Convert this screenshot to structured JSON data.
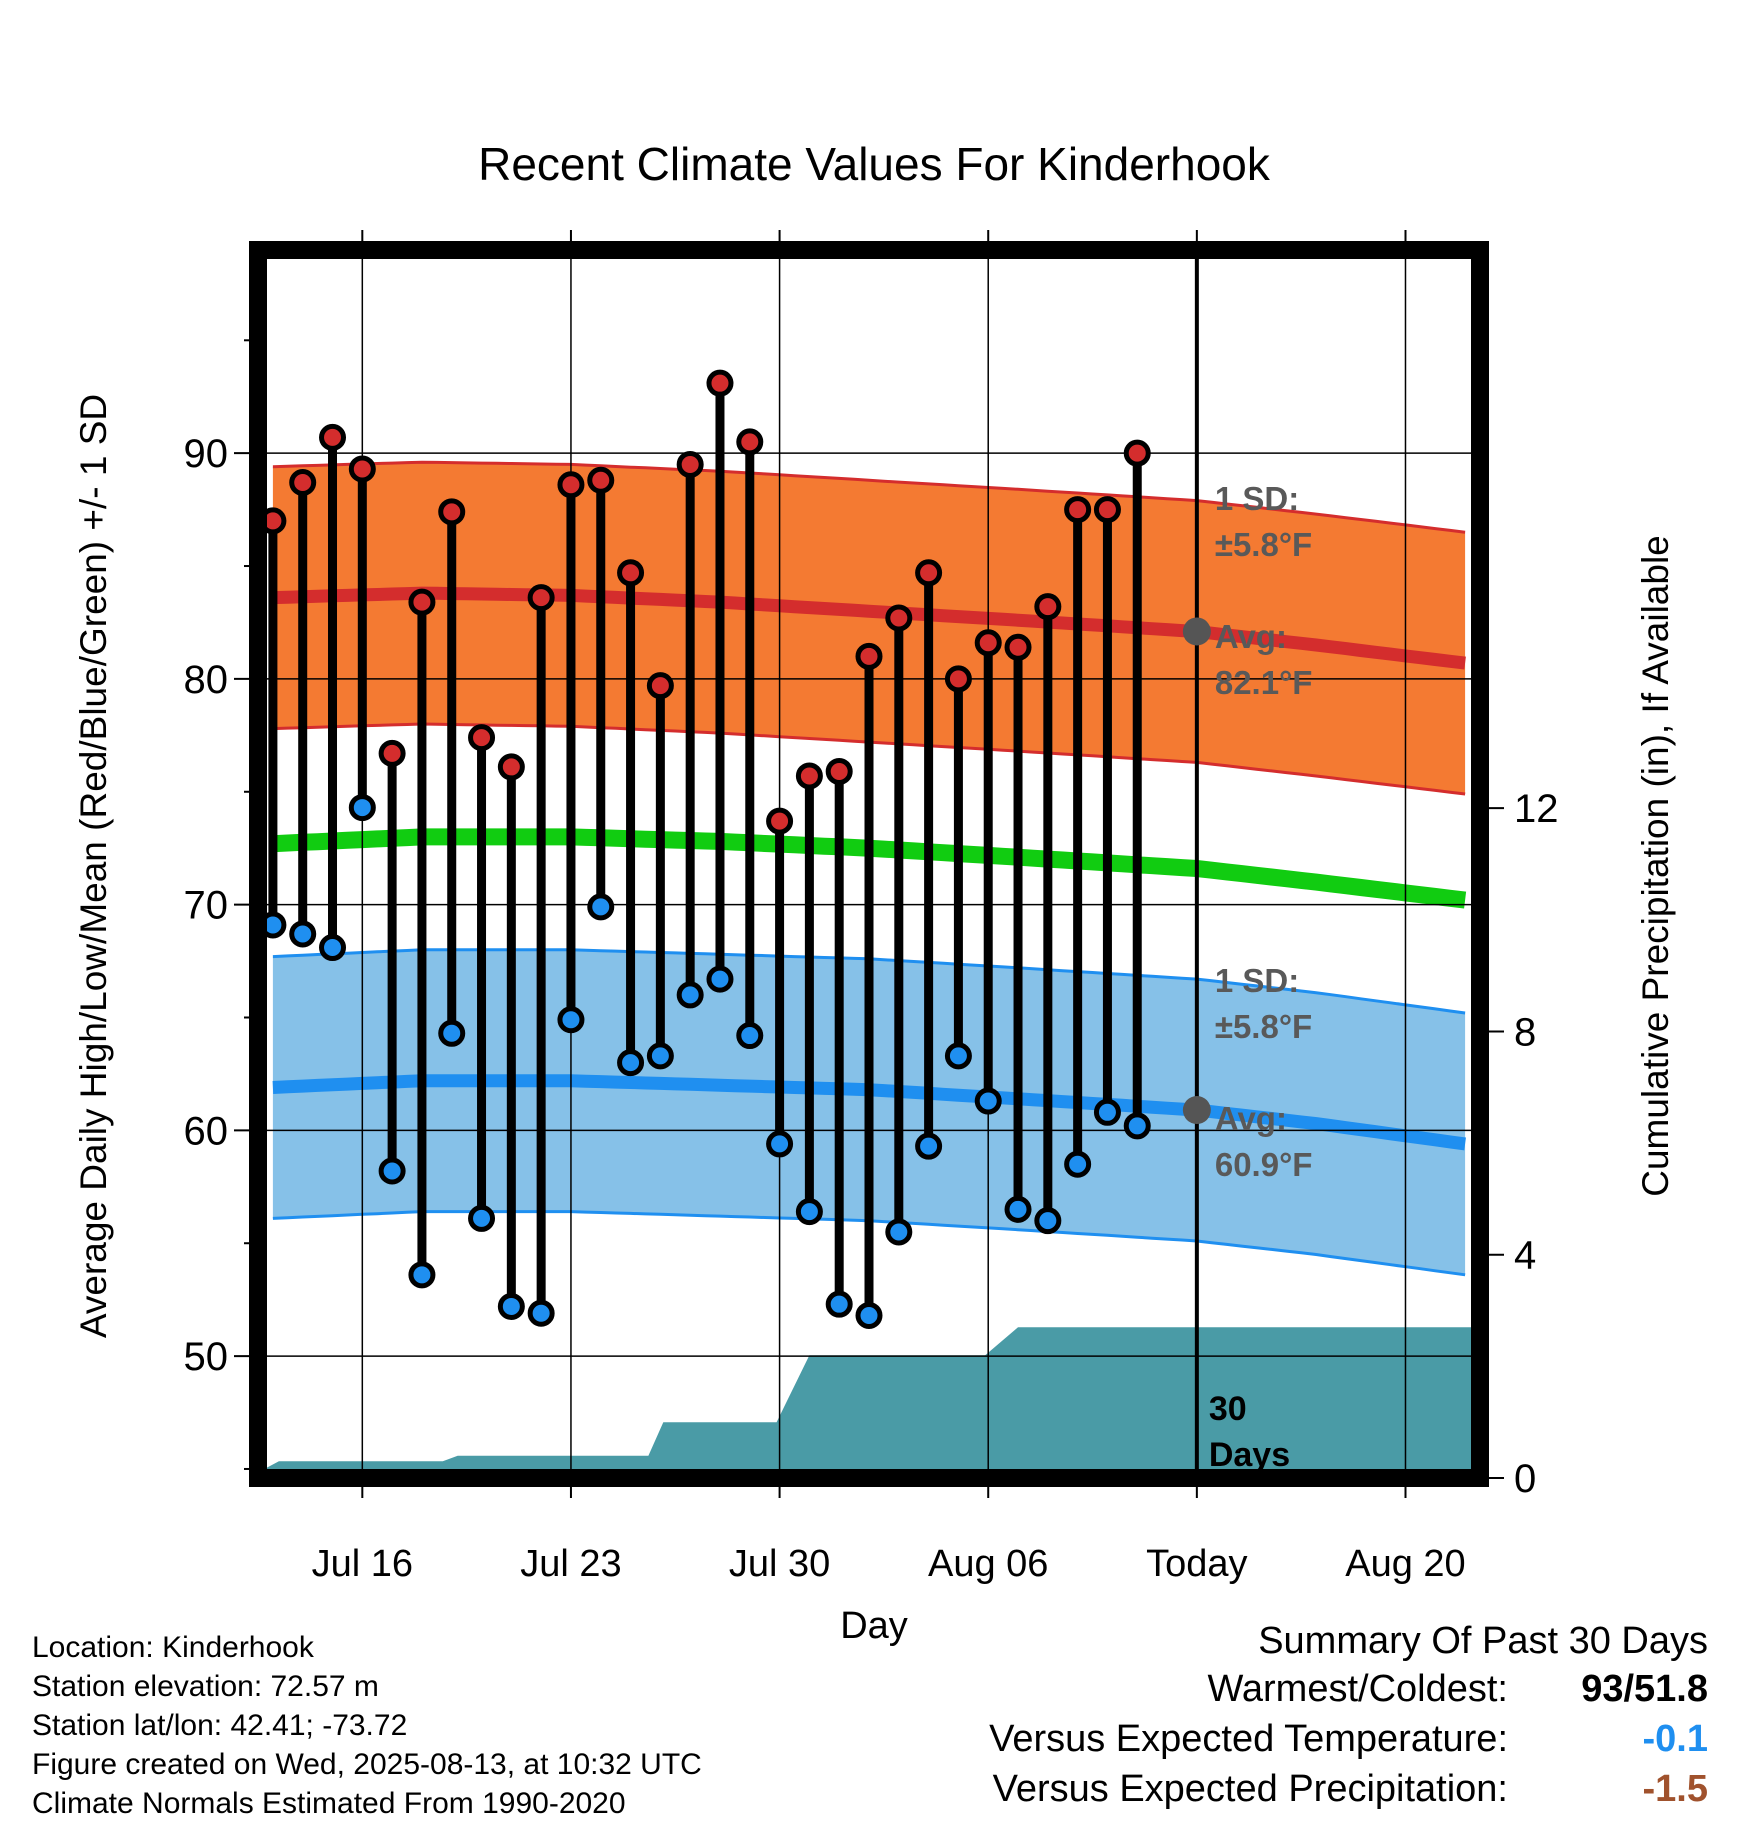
{
  "chart_data": {
    "type": "line",
    "title": "Recent Climate Values For Kinderhook",
    "xlabel": "Day",
    "ylabel_left": "Average Daily High/Low/Mean (Red/Blue/Green) +/- 1 SD",
    "ylabel_right": "Cumulative Precipitation (in), If Available",
    "x_ticks": [
      {
        "day": 3,
        "label": "Jul 16"
      },
      {
        "day": 10,
        "label": "Jul 23"
      },
      {
        "day": 17,
        "label": "Jul 30"
      },
      {
        "day": 24,
        "label": "Aug 06"
      },
      {
        "day": 31,
        "label": "Today"
      },
      {
        "day": 38,
        "label": "Aug 20"
      }
    ],
    "x_range": [
      -0.5,
      40.5
    ],
    "y_left_range": [
      44.6,
      99
    ],
    "y_left_ticks": [
      50,
      60,
      70,
      80,
      90
    ],
    "y_right_range": [
      0,
      22
    ],
    "y_right_ticks": [
      0,
      4,
      8,
      12
    ],
    "today_day": 31,
    "daily_high": [
      87,
      88.7,
      90.7,
      89.3,
      76.7,
      83.4,
      87.4,
      77.4,
      76.1,
      83.6,
      88.6,
      88.8,
      84.7,
      79.7,
      89.5,
      93.1,
      90.5,
      73.7,
      75.7,
      75.9,
      81,
      82.7,
      84.7,
      80,
      81.6,
      81.4,
      83.2,
      87.5,
      87.5,
      90
    ],
    "daily_low": [
      69.1,
      68.7,
      68.1,
      74.3,
      58.2,
      53.6,
      64.3,
      56.1,
      52.2,
      51.9,
      64.9,
      69.9,
      63,
      63.3,
      66,
      66.7,
      64.2,
      59.4,
      56.4,
      52.3,
      51.8,
      55.5,
      59.3,
      63.3,
      61.3,
      56.5,
      56,
      58.5,
      60.8,
      60.2
    ],
    "normal_high": {
      "days": [
        0,
        5,
        10,
        15,
        20,
        25,
        31,
        35,
        40
      ],
      "values": [
        83.6,
        83.8,
        83.7,
        83.4,
        83,
        82.6,
        82.1,
        81.5,
        80.7
      ]
    },
    "normal_high_sd": 5.8,
    "normal_mean": {
      "days": [
        0,
        5,
        10,
        15,
        20,
        25,
        31,
        35,
        40
      ],
      "values": [
        72.7,
        73,
        73,
        72.8,
        72.5,
        72.1,
        71.6,
        71,
        70.2
      ]
    },
    "normal_low": {
      "days": [
        0,
        5,
        10,
        15,
        20,
        25,
        31,
        35,
        40
      ],
      "values": [
        61.9,
        62.2,
        62.2,
        62,
        61.8,
        61.4,
        60.9,
        60.3,
        59.4
      ]
    },
    "normal_low_sd": 5.8,
    "cumulative_precip": {
      "days": [
        -0.5,
        0.2,
        5.7,
        6.2,
        12.6,
        13.1,
        16.9,
        18,
        23.9,
        25,
        40.5
      ],
      "values": [
        0.1,
        0.3,
        0.3,
        0.4,
        0.4,
        1,
        1,
        2.2,
        2.2,
        2.7,
        2.7
      ]
    },
    "annotations": {
      "high_sd_label": [
        "1 SD:",
        "±5.8°F"
      ],
      "high_avg_label": [
        "Avg:",
        "82.1°F"
      ],
      "low_sd_label": [
        "1 SD:",
        "±5.8°F"
      ],
      "low_avg_label": [
        "Avg:",
        "60.9°F"
      ],
      "days_label": [
        "30",
        "Days"
      ]
    },
    "colors": {
      "high_band": "#f47a32",
      "high_line": "#d42d2d",
      "low_band": "#86c1e8",
      "low_line": "#1f8ff0",
      "mean_line": "#11cc11",
      "precip": "#4a9ba6",
      "high_dot": "#d42d2d",
      "low_dot": "#1f8ff0",
      "annotation": "#595959"
    }
  },
  "footer": {
    "location": "Location: Kinderhook",
    "elevation": "Station elevation: 72.57 m",
    "latlon": "Station lat/lon: 42.41; -73.72",
    "created": "Figure created on Wed, 2025-08-13, at 10:32 UTC",
    "normals": "Climate Normals Estimated From 1990-2020"
  },
  "summary": {
    "heading": "Summary Of Past 30 Days",
    "warmest_label": "Warmest/Coldest:",
    "warmest_value": "93/51.8",
    "temp_label": "Versus Expected Temperature:",
    "temp_value": "-0.1",
    "temp_color": "#1f8ff0",
    "precip_label": "Versus Expected Precipitation:",
    "precip_value": "-1.5",
    "precip_color": "#a0522d"
  }
}
